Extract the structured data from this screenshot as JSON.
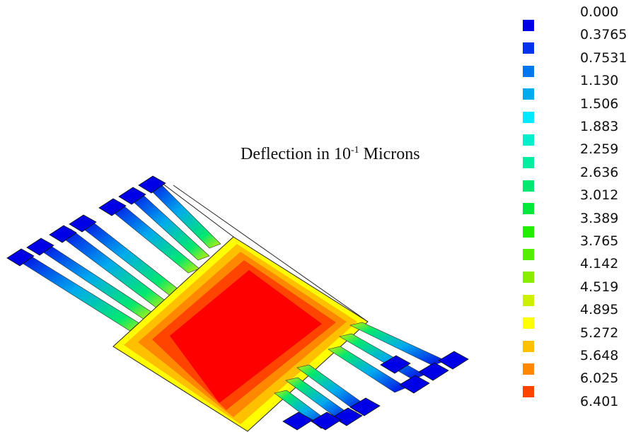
{
  "title": {
    "prefix": "Deflection in 10",
    "exponent": "-1",
    "suffix": " Microns"
  },
  "legend": [
    {
      "label": "0.000",
      "color": "#0000e6"
    },
    {
      "label": "0.3765",
      "color": "#0033ee"
    },
    {
      "label": "0.7531",
      "color": "#0077ee"
    },
    {
      "label": "1.130",
      "color": "#00aaee"
    },
    {
      "label": "1.506",
      "color": "#00eaff"
    },
    {
      "label": "1.883",
      "color": "#00f0cc"
    },
    {
      "label": "2.259",
      "color": "#00eea0"
    },
    {
      "label": "2.636",
      "color": "#00e870"
    },
    {
      "label": "3.012",
      "color": "#00e83a"
    },
    {
      "label": "3.389",
      "color": "#22ee00"
    },
    {
      "label": "3.765",
      "color": "#55ee00"
    },
    {
      "label": "4.142",
      "color": "#88ee00"
    },
    {
      "label": "4.519",
      "color": "#ccf000"
    },
    {
      "label": "4.895",
      "color": "#ffff00"
    },
    {
      "label": "5.272",
      "color": "#ffc000"
    },
    {
      "label": "5.648",
      "color": "#ff8800"
    },
    {
      "label": "6.025",
      "color": "#ff4400"
    },
    {
      "label": "6.401",
      "color": "#ff0000"
    }
  ]
}
